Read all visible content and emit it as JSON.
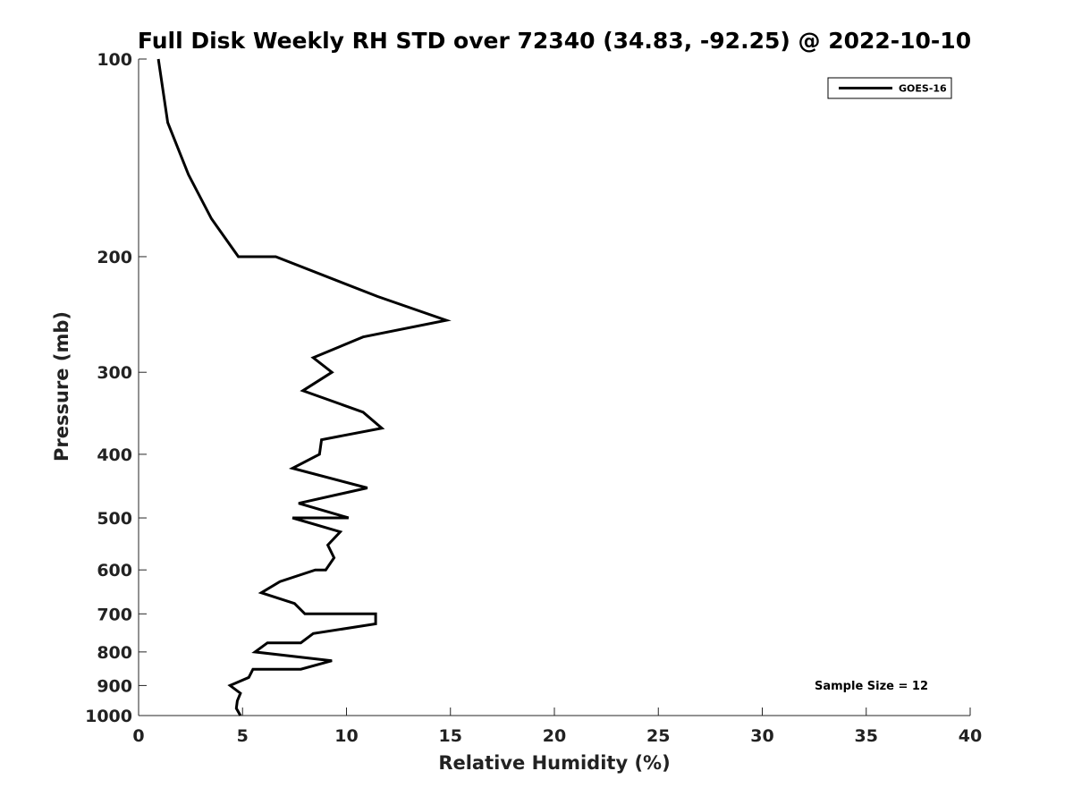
{
  "chart_data": {
    "type": "line",
    "title": "Full Disk Weekly RH STD over 72340 (34.83, -92.25) @ 2022-10-10",
    "xlabel": "Relative Humidity (%)",
    "ylabel": "Pressure (mb)",
    "xlim": [
      0,
      40
    ],
    "ylim": [
      100,
      1000
    ],
    "y_scale": "log",
    "y_inverted": true,
    "x_ticks": [
      0,
      5,
      10,
      15,
      20,
      25,
      30,
      35,
      40
    ],
    "y_ticks": [
      100,
      200,
      300,
      400,
      500,
      600,
      700,
      800,
      900,
      1000
    ],
    "grid": false,
    "legend_position": "top-right",
    "annotation": "Sample Size = 12",
    "series": [
      {
        "name": "GOES-16",
        "color": "#000000",
        "points": [
          [
            0.95,
            100
          ],
          [
            1.4,
            125
          ],
          [
            2.4,
            150
          ],
          [
            3.5,
            175
          ],
          [
            4.8,
            200
          ],
          [
            6.6,
            200
          ],
          [
            11.5,
            230
          ],
          [
            14.8,
            250
          ],
          [
            10.8,
            265
          ],
          [
            8.4,
            285
          ],
          [
            9.3,
            300
          ],
          [
            7.9,
            320
          ],
          [
            10.8,
            345
          ],
          [
            11.7,
            365
          ],
          [
            8.8,
            380
          ],
          [
            8.7,
            400
          ],
          [
            7.4,
            420
          ],
          [
            11.0,
            450
          ],
          [
            7.7,
            475
          ],
          [
            10.1,
            500
          ],
          [
            7.4,
            500
          ],
          [
            9.7,
            525
          ],
          [
            9.1,
            550
          ],
          [
            9.4,
            575
          ],
          [
            9.0,
            600
          ],
          [
            8.5,
            600
          ],
          [
            6.8,
            625
          ],
          [
            5.9,
            650
          ],
          [
            7.5,
            675
          ],
          [
            8.0,
            700
          ],
          [
            11.4,
            700
          ],
          [
            11.4,
            725
          ],
          [
            8.4,
            750
          ],
          [
            7.8,
            775
          ],
          [
            6.2,
            775
          ],
          [
            5.6,
            800
          ],
          [
            9.3,
            825
          ],
          [
            7.8,
            850
          ],
          [
            5.5,
            850
          ],
          [
            5.3,
            875
          ],
          [
            4.4,
            900
          ],
          [
            4.9,
            925
          ],
          [
            4.75,
            950
          ],
          [
            4.7,
            975
          ],
          [
            4.9,
            1000
          ]
        ]
      }
    ]
  }
}
